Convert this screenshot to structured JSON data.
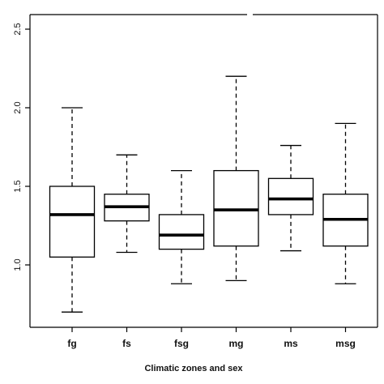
{
  "chart_data": {
    "type": "boxplot",
    "title": "",
    "xlabel": "Climatic zones and sex",
    "ylabel": "",
    "ylim": [
      0.6,
      2.6
    ],
    "yticks": [
      "1.0",
      "1.5",
      "2.0",
      "2.5"
    ],
    "categories": [
      "fg",
      "fs",
      "fsg",
      "mg",
      "ms",
      "msg"
    ],
    "boxes": [
      {
        "category": "fg",
        "whisker_low": 0.7,
        "q1": 1.05,
        "median": 1.32,
        "q3": 1.5,
        "whisker_high": 2.0
      },
      {
        "category": "fs",
        "whisker_low": 1.08,
        "q1": 1.28,
        "median": 1.37,
        "q3": 1.45,
        "whisker_high": 1.7
      },
      {
        "category": "fsg",
        "whisker_low": 0.88,
        "q1": 1.1,
        "median": 1.19,
        "q3": 1.32,
        "whisker_high": 1.6
      },
      {
        "category": "mg",
        "whisker_low": 0.9,
        "q1": 1.12,
        "median": 1.35,
        "q3": 1.6,
        "whisker_high": 2.2
      },
      {
        "category": "ms",
        "whisker_low": 1.09,
        "q1": 1.32,
        "median": 1.42,
        "q3": 1.55,
        "whisker_high": 1.76
      },
      {
        "category": "msg",
        "whisker_low": 0.88,
        "q1": 1.12,
        "median": 1.29,
        "q3": 1.45,
        "whisker_high": 1.9
      }
    ],
    "grid": false,
    "legend": "none"
  }
}
